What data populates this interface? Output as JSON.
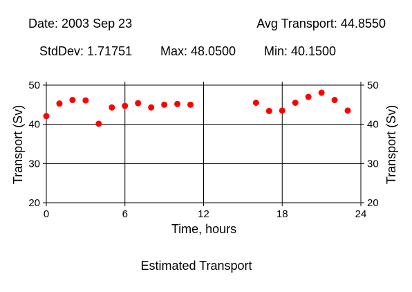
{
  "header": {
    "date_label": "Date: 2003 Sep 23",
    "avg_label": "Avg Transport: 44.8550",
    "stddev_label": "StdDev: 1.71751",
    "max_label": "Max: 48.0500",
    "min_label": "Min: 40.1500"
  },
  "caption": "Estimated Transport",
  "colors": {
    "marker": "#ff0000",
    "axis": "#000000",
    "grid": "#000000"
  },
  "chart_data": {
    "type": "scatter",
    "xlabel": "Time, hours",
    "ylabel": "Transport (Sv)",
    "xlim": [
      0,
      24
    ],
    "ylim": [
      20,
      50
    ],
    "x_ticks": [
      0,
      6,
      12,
      18,
      24
    ],
    "y_ticks": [
      20,
      30,
      40,
      50
    ],
    "grid": true,
    "series": [
      {
        "points": [
          {
            "x": 0,
            "y": 42.1
          },
          {
            "x": 1,
            "y": 45.3
          },
          {
            "x": 2,
            "y": 46.2
          },
          {
            "x": 3,
            "y": 46.1
          },
          {
            "x": 4,
            "y": 40.15
          },
          {
            "x": 5,
            "y": 44.3
          },
          {
            "x": 6,
            "y": 44.7
          },
          {
            "x": 7,
            "y": 45.4
          },
          {
            "x": 8,
            "y": 44.3
          },
          {
            "x": 9,
            "y": 45.0
          },
          {
            "x": 10,
            "y": 45.2
          },
          {
            "x": 11,
            "y": 45.0
          },
          {
            "x": 16,
            "y": 45.5
          },
          {
            "x": 17,
            "y": 43.4
          },
          {
            "x": 18,
            "y": 43.5
          },
          {
            "x": 19,
            "y": 45.5
          },
          {
            "x": 20,
            "y": 47.0
          },
          {
            "x": 21,
            "y": 48.05
          },
          {
            "x": 22,
            "y": 46.2
          },
          {
            "x": 23,
            "y": 43.5
          }
        ]
      }
    ]
  }
}
